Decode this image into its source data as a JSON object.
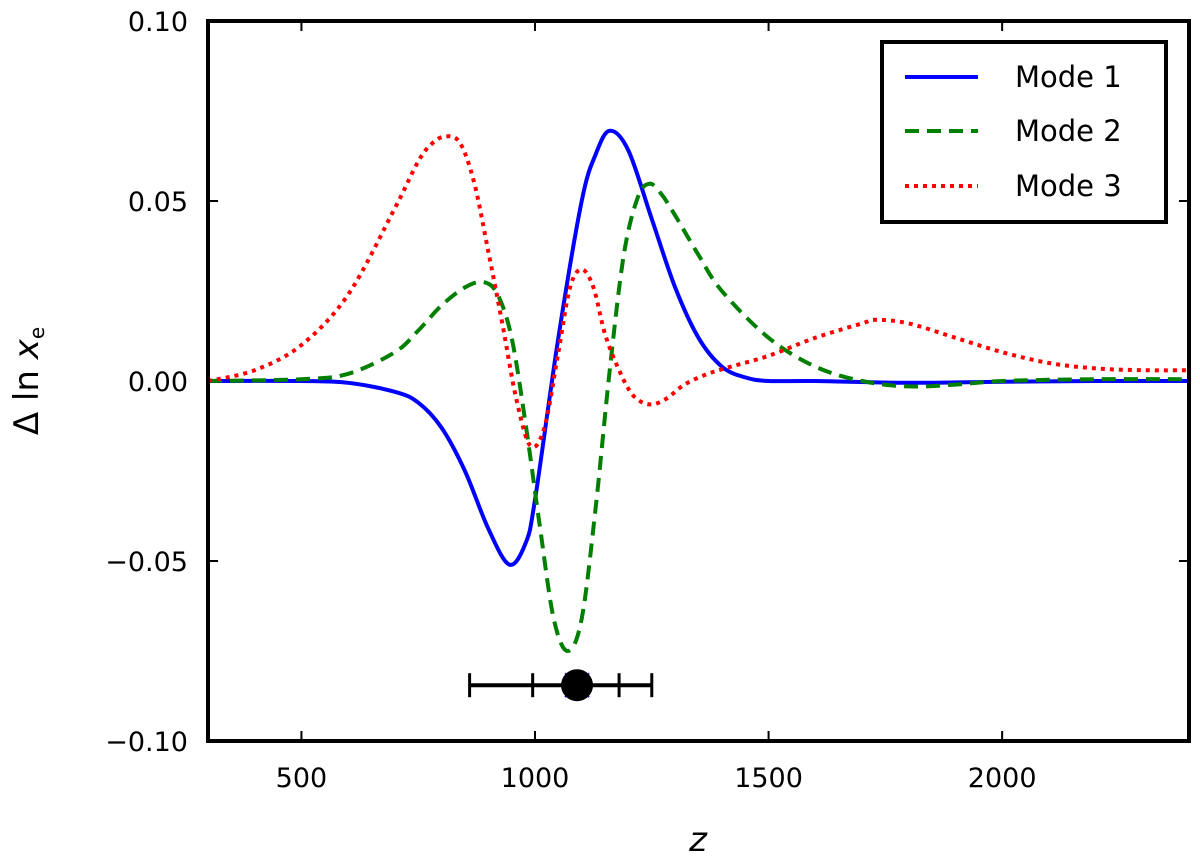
{
  "chart_data": {
    "type": "line",
    "xlabel": "z",
    "ylabel_delta": "Δ ln ",
    "ylabel_var": "x",
    "ylabel_sub": "e",
    "xlim": [
      300,
      2400
    ],
    "ylim": [
      -0.1,
      0.1
    ],
    "xticks": [
      500,
      1000,
      1500,
      2000
    ],
    "xtick_labels": [
      "500",
      "1000",
      "1500",
      "2000"
    ],
    "yticks": [
      -0.1,
      -0.05,
      0.0,
      0.05,
      0.1
    ],
    "ytick_labels": [
      "−0.10",
      "−0.05",
      "0.00",
      "0.05",
      "0.10"
    ],
    "legend_position": "top-right",
    "series": [
      {
        "name": "Mode 1",
        "color": "#0000ff",
        "style": "solid",
        "x": [
          300,
          500,
          600,
          700,
          750,
          800,
          850,
          900,
          945,
          980,
          1000,
          1050,
          1100,
          1130,
          1160,
          1200,
          1250,
          1300,
          1350,
          1400,
          1450,
          1500,
          1600,
          1800,
          2000,
          2200,
          2400
        ],
        "y": [
          0.0,
          0.0,
          -0.0005,
          -0.003,
          -0.006,
          -0.013,
          -0.025,
          -0.041,
          -0.051,
          -0.045,
          -0.033,
          0.012,
          0.05,
          0.063,
          0.0695,
          0.064,
          0.045,
          0.026,
          0.012,
          0.004,
          0.001,
          0.0,
          0.0,
          -0.0005,
          -0.0002,
          0.0,
          0.0
        ]
      },
      {
        "name": "Mode 2",
        "color": "#007f00",
        "style": "dashed",
        "x": [
          300,
          500,
          600,
          700,
          750,
          800,
          850,
          890,
          920,
          950,
          980,
          1010,
          1040,
          1070,
          1100,
          1130,
          1160,
          1190,
          1220,
          1245,
          1270,
          1300,
          1350,
          1400,
          1500,
          1600,
          1700,
          1800,
          1900,
          2000,
          2200,
          2400
        ],
        "y": [
          0.0,
          0.0005,
          0.002,
          0.008,
          0.014,
          0.021,
          0.026,
          0.0275,
          0.024,
          0.012,
          -0.012,
          -0.04,
          -0.066,
          -0.075,
          -0.066,
          -0.035,
          0.003,
          0.035,
          0.051,
          0.0548,
          0.052,
          0.046,
          0.035,
          0.025,
          0.012,
          0.004,
          0.0,
          -0.0015,
          -0.001,
          0.0,
          0.0005,
          0.0005
        ]
      },
      {
        "name": "Mode 3",
        "color": "#ff0000",
        "style": "dotted",
        "x": [
          300,
          400,
          500,
          600,
          700,
          750,
          780,
          810,
          840,
          870,
          900,
          930,
          960,
          990,
          1020,
          1050,
          1075,
          1100,
          1125,
          1150,
          1180,
          1210,
          1245,
          1280,
          1320,
          1370,
          1420,
          1500,
          1600,
          1700,
          1730,
          1800,
          1900,
          2000,
          2100,
          2200,
          2300,
          2400
        ],
        "y": [
          0.0,
          0.003,
          0.01,
          0.024,
          0.048,
          0.061,
          0.066,
          0.068,
          0.066,
          0.055,
          0.036,
          0.016,
          -0.005,
          -0.018,
          -0.013,
          0.008,
          0.026,
          0.031,
          0.026,
          0.013,
          0.003,
          -0.004,
          -0.0065,
          -0.005,
          -0.001,
          0.002,
          0.004,
          0.007,
          0.012,
          0.016,
          0.017,
          0.016,
          0.012,
          0.008,
          0.005,
          0.0035,
          0.003,
          0.003
        ]
      }
    ],
    "errorbar": {
      "x": 1090,
      "y": -0.0845,
      "xmin": 860,
      "xmax": 1250,
      "inner_ticks": [
        995,
        1180
      ],
      "marker": "circle",
      "color": "#000000"
    }
  }
}
